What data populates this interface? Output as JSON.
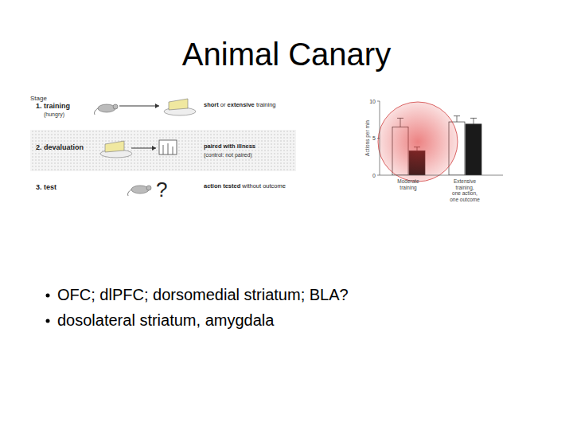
{
  "title": "Animal Canary",
  "diagram": {
    "header": "Stage",
    "stages": [
      {
        "label": "1. training",
        "note": "(hungry)",
        "text": [
          {
            "text": "short",
            "bold": true
          },
          {
            "text": " or ",
            "bold": false
          },
          {
            "text": "extensive",
            "bold": true
          },
          {
            "text": " training",
            "bold": false
          }
        ],
        "subtext": null
      },
      {
        "label": "2. devaluation",
        "note": null,
        "text": [
          {
            "text": "paired with illness",
            "bold": true
          }
        ],
        "subtext": "(control: not paired)"
      },
      {
        "label": "3. test",
        "note": null,
        "text": [
          {
            "text": "action tested",
            "bold": true
          },
          {
            "text": " without outcome",
            "bold": false
          }
        ],
        "subtext": null
      }
    ],
    "test_symbol": "?"
  },
  "chart_data": {
    "type": "bar",
    "y_label": "Actions per min",
    "categories": [
      "Moderate\ntraining",
      "Extensive\ntraining,\none action,\none outcome"
    ],
    "series": [
      {
        "color": "#ffffff",
        "values": [
          6.5,
          7.2
        ],
        "errors": [
          1.2,
          0.8
        ]
      },
      {
        "color": "#1a1a1a",
        "values": [
          3.3,
          6.9
        ],
        "errors": [
          0.5,
          0.8
        ]
      }
    ],
    "ylim": [
      0,
      10
    ],
    "yticks": [
      0,
      5,
      10
    ],
    "grid": false
  },
  "bullets": [
    "OFC; dlPFC; dorsomedial striatum; BLA?",
    "dosolateral striatum, amygdala"
  ]
}
